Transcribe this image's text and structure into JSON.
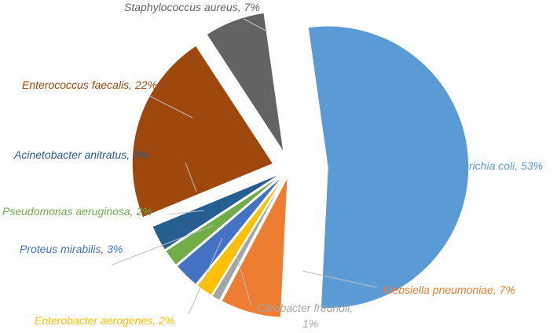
{
  "chart_data": {
    "type": "pie",
    "exploded": true,
    "legend": "none",
    "slices": [
      {
        "name": "Escherichia coli",
        "value": 53,
        "label": "Escherichia coli, 53%",
        "color": "#5B9BD5"
      },
      {
        "name": "Klebsiella pneumoniae",
        "value": 7,
        "label": "Klebsiella pneumoniae, 7%",
        "color": "#ED7D31"
      },
      {
        "name": "Citrobacter freundii",
        "value": 1,
        "label": "Citrobacter freundii,|1%",
        "color": "#A5A5A5"
      },
      {
        "name": "Enterobacter aerogenes",
        "value": 2,
        "label": "Enterobacter aerogenes, 2%",
        "color": "#FFC000"
      },
      {
        "name": "Proteus mirabilis",
        "value": 3,
        "label": "Proteus mirabilis, 3%",
        "color": "#4472C4"
      },
      {
        "name": "Pseudomonas aeruginosa",
        "value": 2,
        "label": "Pseudomonas aeruginosa, 2%",
        "color": "#70AD47"
      },
      {
        "name": "Acinetobacter anitratus",
        "value": 3,
        "label": "Acinetobacter anitratus, 3%",
        "color": "#255E91"
      },
      {
        "name": "Enterococcus faecalis",
        "value": 22,
        "label": "Enterococcus faecalis, 22%",
        "color": "#9E480E"
      },
      {
        "name": "Staphylococcus aureus",
        "value": 7,
        "label": "Staphylococcus aureus, 7%",
        "color": "#636363"
      }
    ]
  }
}
